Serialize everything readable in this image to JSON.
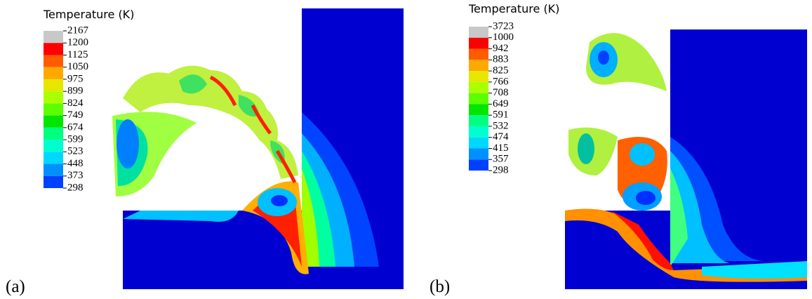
{
  "panels": [
    {
      "label": "(a)",
      "legend": {
        "title": "Temperature (K)",
        "ticks": [
          2167,
          1200,
          1125,
          1050,
          975,
          899,
          824,
          749,
          674,
          599,
          523,
          448,
          373,
          298
        ]
      }
    },
    {
      "label": "(b)",
      "legend": {
        "title": "Temperature (K)",
        "ticks": [
          3723,
          1000,
          942,
          883,
          825,
          766,
          708,
          649,
          591,
          532,
          474,
          415,
          357,
          298
        ]
      }
    }
  ]
}
